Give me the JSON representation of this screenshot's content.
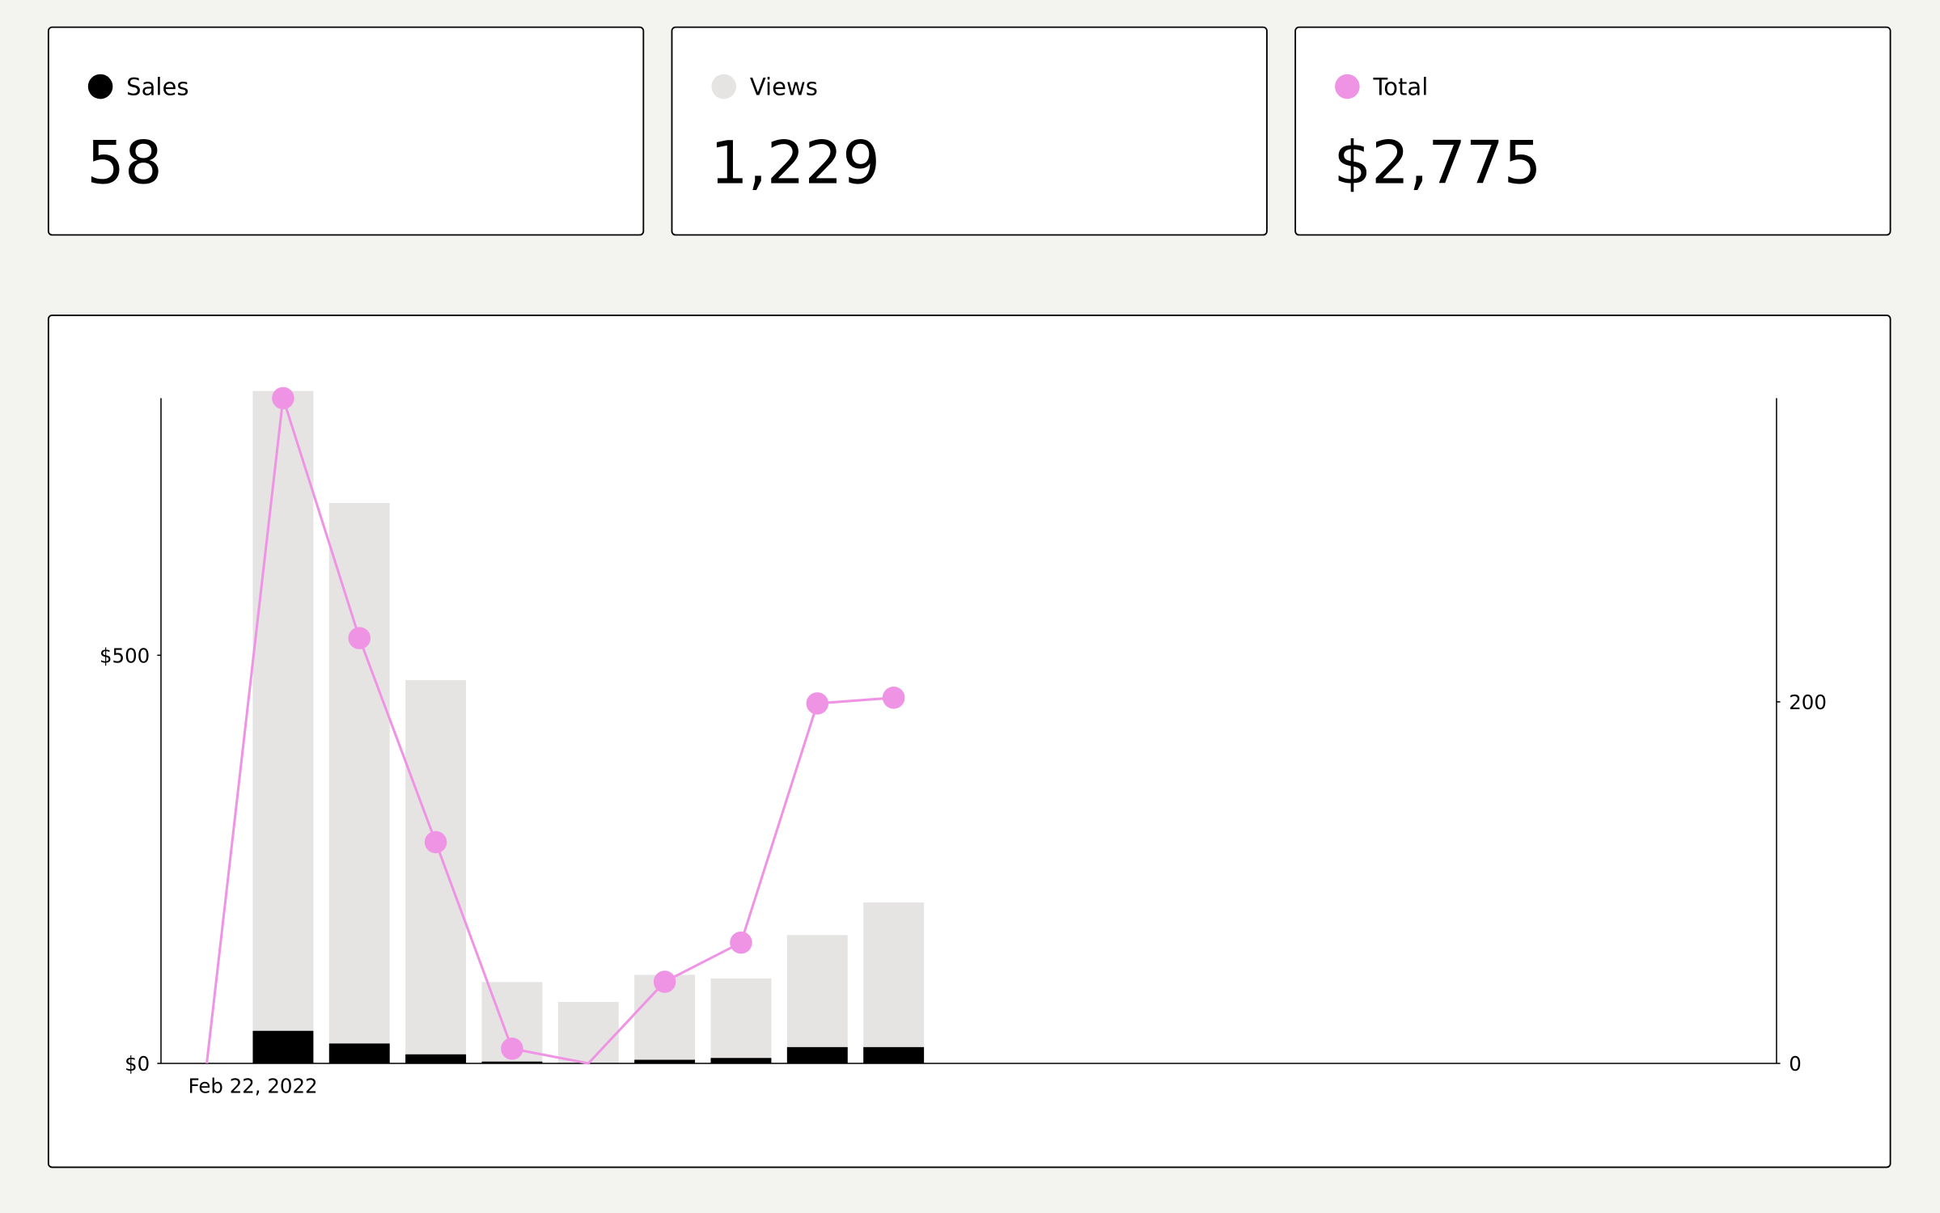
{
  "summary": [
    "58",
    "1,229",
    "$2,775"
  ],
  "chart_data": {
    "type": "bar-line",
    "categories": [
      "Feb 22, 2022",
      null,
      null,
      null,
      null,
      null,
      null,
      null,
      null,
      null,
      null,
      null,
      null,
      null,
      null,
      null,
      null,
      null,
      null,
      null,
      null
    ],
    "series": [
      {
        "name": "Sales",
        "color": "#000000",
        "type": "bar",
        "axis": "y2",
        "values": [
          null,
          18,
          11,
          5,
          1,
          0,
          2,
          3,
          9,
          9,
          null,
          null,
          null,
          null,
          null,
          null,
          null,
          null,
          null,
          null,
          null
        ]
      },
      {
        "name": "Views",
        "color": "#e5e4e3",
        "type": "bar",
        "axis": "y2",
        "values": [
          null,
          372,
          310,
          212,
          45,
          34,
          49,
          47,
          71,
          89,
          null,
          null,
          null,
          null,
          null,
          null,
          null,
          null,
          null,
          null,
          null
        ]
      },
      {
        "name": "Total",
        "color": "#ef94e4",
        "type": "line",
        "axis": "y",
        "values": [
          0,
          815,
          521,
          271,
          18,
          0,
          100,
          148,
          441,
          448,
          null,
          null,
          null,
          null,
          null,
          null,
          null,
          null,
          null,
          null,
          null
        ]
      }
    ],
    "ylim": [
      0,
      815
    ],
    "yticks": [
      {
        "value": 0,
        "label": "$0"
      },
      {
        "value": 500,
        "label": "$500"
      }
    ],
    "y2lim": [
      0,
      368
    ],
    "y2ticks": [
      0,
      200
    ]
  }
}
